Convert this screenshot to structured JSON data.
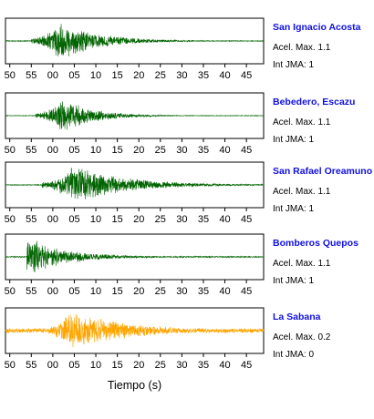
{
  "chart_data": {
    "type": "line",
    "xlabel": "Tiempo (s)",
    "x_tick_labels": [
      "50",
      "55",
      "00",
      "05",
      "10",
      "15",
      "20",
      "25",
      "30",
      "35",
      "40",
      "45"
    ],
    "x_range_seconds": [
      -11,
      49
    ],
    "panels": [
      {
        "station": "San Ignacio Acosta",
        "accel_text": "Acel. Max. 1.1",
        "jma_text": "Int JMA: 1",
        "color": "#006400",
        "onset_s": -5,
        "peak_s": 1.5,
        "peak_amplitude": 0.95,
        "decay_s": 9,
        "noise_level": 0.02
      },
      {
        "station": "Bebedero, Escazu",
        "accel_text": "Acel. Max. 1.1",
        "jma_text": "Int JMA: 1",
        "color": "#006400",
        "onset_s": -4,
        "peak_s": 2.5,
        "peak_amplitude": 0.85,
        "decay_s": 7,
        "noise_level": 0.015
      },
      {
        "station": "San Rafael Oreamuno",
        "accel_text": "Acel. Max. 1.1",
        "jma_text": "Int JMA: 1",
        "color": "#006400",
        "onset_s": -2.5,
        "peak_s": 5,
        "peak_amplitude": 0.95,
        "decay_s": 12,
        "noise_level": 0.02
      },
      {
        "station": "Bomberos Quepos",
        "accel_text": "Acel. Max. 1.1",
        "jma_text": "Int JMA: 1",
        "color": "#006400",
        "onset_s": -6,
        "peak_s": -6,
        "peak_amplitude": 0.95,
        "decay_s": 9,
        "noise_level": 0.03
      },
      {
        "station": "La Sabana",
        "accel_text": "Acel. Max. 0.2",
        "jma_text": "Int JMA: 0",
        "color": "#FFA500",
        "onset_s": -2,
        "peak_s": 4,
        "peak_amplitude": 0.95,
        "decay_s": 14,
        "noise_level": 0.12
      }
    ]
  }
}
